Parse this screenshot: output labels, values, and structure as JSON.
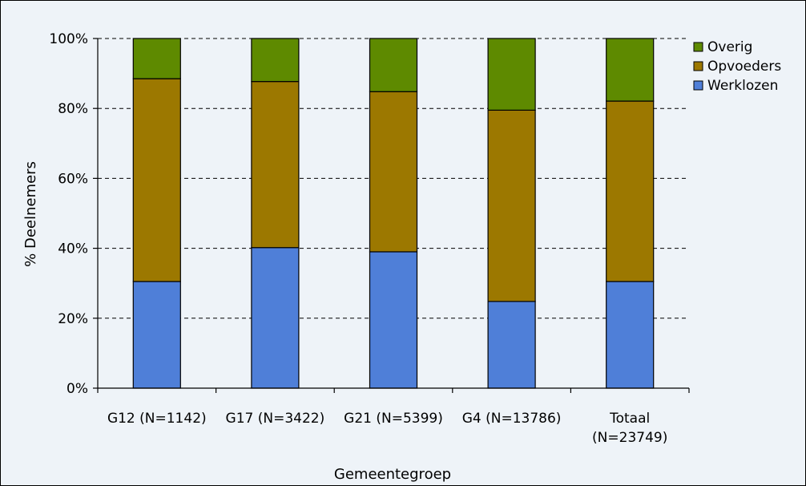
{
  "chart_data": {
    "type": "bar",
    "stacked": true,
    "normalized": true,
    "categories": [
      [
        "G12 (N=1142)"
      ],
      [
        "G17 (N=3422)"
      ],
      [
        "G21 (N=5399)"
      ],
      [
        "G4 (N=13786)"
      ],
      [
        "Totaal",
        "(N=23749)"
      ]
    ],
    "series": [
      {
        "name": "Werklozen",
        "color": "#4f7fd8",
        "values": [
          30.5,
          40.2,
          39.0,
          24.8,
          30.5
        ]
      },
      {
        "name": "Opvoeders",
        "color": "#9c7800",
        "values": [
          58.0,
          47.5,
          45.8,
          54.7,
          51.6
        ]
      },
      {
        "name": "Overig",
        "color": "#5e8a00",
        "values": [
          11.5,
          12.3,
          15.2,
          20.5,
          17.9
        ]
      }
    ],
    "legend_order": [
      "Overig",
      "Opvoeders",
      "Werklozen"
    ],
    "ylim": [
      0,
      100
    ],
    "yticks": [
      0,
      20,
      40,
      60,
      80,
      100
    ],
    "ytick_labels": [
      "0%",
      "20%",
      "40%",
      "60%",
      "80%",
      "100%"
    ],
    "ylabel": "% Deelnemers",
    "xlabel": "Gemeentegroep",
    "grid": "horizontal-dashed",
    "legend_position": "right",
    "colors": {
      "background": "#eef3f8",
      "axis": "#000000",
      "grid": "#000000"
    }
  }
}
